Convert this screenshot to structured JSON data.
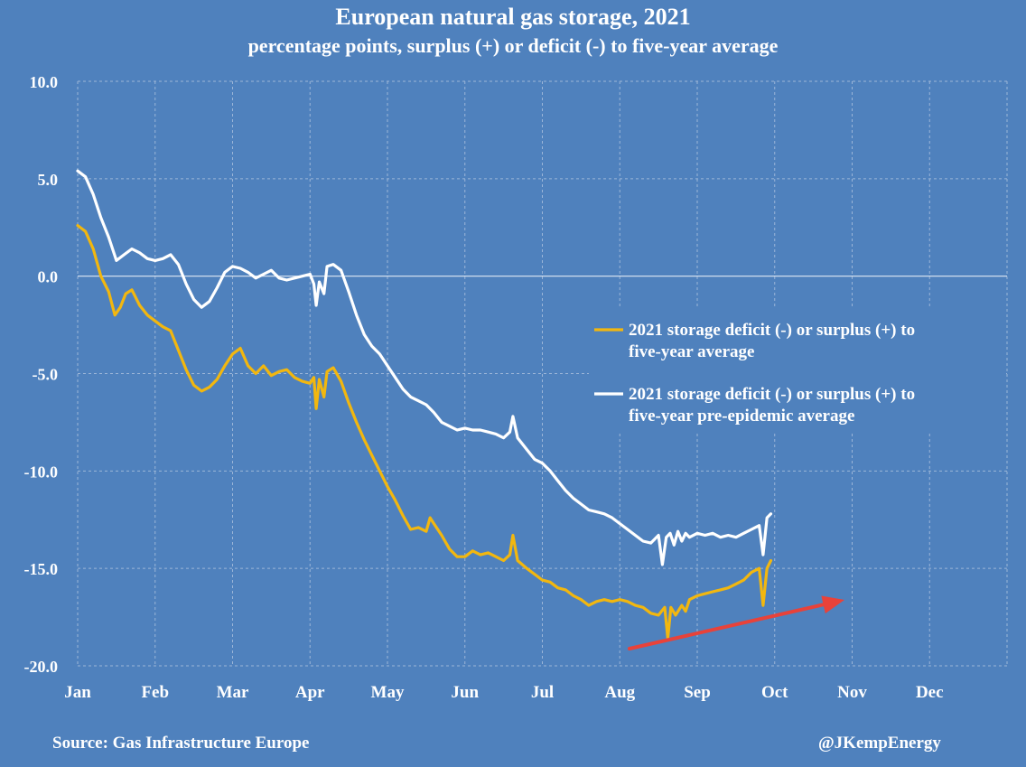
{
  "chart_data": {
    "type": "line",
    "title": "European natural gas storage, 2021",
    "subtitle": "percentage points, surplus (+) or deficit (-) to five-year average",
    "ylim": [
      -20,
      10
    ],
    "yticks": [
      10,
      5,
      0,
      -5,
      -10,
      -15,
      -20
    ],
    "ytick_labels": [
      "10.0",
      "5.0",
      "0.0",
      "-5.0",
      "-10.0",
      "-15.0",
      "-20.0"
    ],
    "months": [
      "Jan",
      "Feb",
      "Mar",
      "Apr",
      "May",
      "Jun",
      "Jul",
      "Aug",
      "Sep",
      "Oct",
      "Nov",
      "Dec"
    ],
    "grid": true,
    "legend_position": "right",
    "series": [
      {
        "name": "2021 storage deficit (-) or surplus (+) to five-year average",
        "color": "#f2b70f",
        "points": [
          [
            0,
            2.6
          ],
          [
            0.1,
            2.3
          ],
          [
            0.2,
            1.4
          ],
          [
            0.3,
            0.0
          ],
          [
            0.4,
            -0.8
          ],
          [
            0.48,
            -2.0
          ],
          [
            0.55,
            -1.6
          ],
          [
            0.62,
            -0.9
          ],
          [
            0.7,
            -0.7
          ],
          [
            0.8,
            -1.5
          ],
          [
            0.9,
            -2.0
          ],
          [
            1.0,
            -2.3
          ],
          [
            1.1,
            -2.6
          ],
          [
            1.2,
            -2.8
          ],
          [
            1.3,
            -3.8
          ],
          [
            1.4,
            -4.8
          ],
          [
            1.5,
            -5.6
          ],
          [
            1.6,
            -5.9
          ],
          [
            1.7,
            -5.7
          ],
          [
            1.8,
            -5.3
          ],
          [
            1.9,
            -4.6
          ],
          [
            2.0,
            -4.0
          ],
          [
            2.1,
            -3.7
          ],
          [
            2.2,
            -4.6
          ],
          [
            2.3,
            -5.0
          ],
          [
            2.4,
            -4.6
          ],
          [
            2.5,
            -5.1
          ],
          [
            2.6,
            -4.9
          ],
          [
            2.7,
            -4.8
          ],
          [
            2.8,
            -5.2
          ],
          [
            2.9,
            -5.4
          ],
          [
            3.0,
            -5.5
          ],
          [
            3.05,
            -5.2
          ],
          [
            3.08,
            -6.8
          ],
          [
            3.12,
            -5.3
          ],
          [
            3.18,
            -6.2
          ],
          [
            3.22,
            -4.9
          ],
          [
            3.3,
            -4.7
          ],
          [
            3.4,
            -5.4
          ],
          [
            3.5,
            -6.5
          ],
          [
            3.6,
            -7.5
          ],
          [
            3.7,
            -8.4
          ],
          [
            3.8,
            -9.2
          ],
          [
            3.9,
            -10.0
          ],
          [
            4.0,
            -10.8
          ],
          [
            4.1,
            -11.5
          ],
          [
            4.2,
            -12.3
          ],
          [
            4.3,
            -13.0
          ],
          [
            4.4,
            -12.9
          ],
          [
            4.5,
            -13.1
          ],
          [
            4.55,
            -12.4
          ],
          [
            4.6,
            -12.7
          ],
          [
            4.7,
            -13.3
          ],
          [
            4.8,
            -14.0
          ],
          [
            4.9,
            -14.4
          ],
          [
            5.0,
            -14.4
          ],
          [
            5.1,
            -14.1
          ],
          [
            5.2,
            -14.3
          ],
          [
            5.3,
            -14.2
          ],
          [
            5.4,
            -14.4
          ],
          [
            5.5,
            -14.6
          ],
          [
            5.58,
            -14.3
          ],
          [
            5.62,
            -13.3
          ],
          [
            5.68,
            -14.6
          ],
          [
            5.8,
            -15.0
          ],
          [
            5.9,
            -15.3
          ],
          [
            6.0,
            -15.6
          ],
          [
            6.1,
            -15.7
          ],
          [
            6.2,
            -16.0
          ],
          [
            6.3,
            -16.1
          ],
          [
            6.4,
            -16.4
          ],
          [
            6.5,
            -16.6
          ],
          [
            6.6,
            -16.9
          ],
          [
            6.7,
            -16.7
          ],
          [
            6.8,
            -16.6
          ],
          [
            6.9,
            -16.7
          ],
          [
            7.0,
            -16.6
          ],
          [
            7.1,
            -16.7
          ],
          [
            7.2,
            -16.9
          ],
          [
            7.3,
            -17.0
          ],
          [
            7.4,
            -17.3
          ],
          [
            7.5,
            -17.4
          ],
          [
            7.58,
            -17.0
          ],
          [
            7.62,
            -18.6
          ],
          [
            7.66,
            -17.0
          ],
          [
            7.72,
            -17.4
          ],
          [
            7.8,
            -16.9
          ],
          [
            7.85,
            -17.2
          ],
          [
            7.9,
            -16.6
          ],
          [
            8.0,
            -16.4
          ],
          [
            8.1,
            -16.3
          ],
          [
            8.2,
            -16.2
          ],
          [
            8.3,
            -16.1
          ],
          [
            8.4,
            -16.0
          ],
          [
            8.5,
            -15.8
          ],
          [
            8.6,
            -15.6
          ],
          [
            8.7,
            -15.2
          ],
          [
            8.8,
            -15.0
          ],
          [
            8.85,
            -16.9
          ],
          [
            8.9,
            -15.0
          ],
          [
            8.95,
            -14.6
          ]
        ]
      },
      {
        "name": "2021 storage deficit (-) or surplus (+) to five-year pre-epidemic average",
        "color": "#ffffff",
        "points": [
          [
            0,
            5.4
          ],
          [
            0.1,
            5.1
          ],
          [
            0.2,
            4.2
          ],
          [
            0.3,
            3.0
          ],
          [
            0.4,
            2.0
          ],
          [
            0.5,
            0.8
          ],
          [
            0.6,
            1.1
          ],
          [
            0.7,
            1.4
          ],
          [
            0.8,
            1.2
          ],
          [
            0.9,
            0.9
          ],
          [
            1.0,
            0.8
          ],
          [
            1.1,
            0.9
          ],
          [
            1.2,
            1.1
          ],
          [
            1.3,
            0.6
          ],
          [
            1.4,
            -0.4
          ],
          [
            1.5,
            -1.2
          ],
          [
            1.6,
            -1.6
          ],
          [
            1.7,
            -1.3
          ],
          [
            1.8,
            -0.6
          ],
          [
            1.9,
            0.2
          ],
          [
            2.0,
            0.5
          ],
          [
            2.1,
            0.4
          ],
          [
            2.2,
            0.2
          ],
          [
            2.3,
            -0.1
          ],
          [
            2.4,
            0.1
          ],
          [
            2.5,
            0.3
          ],
          [
            2.6,
            -0.1
          ],
          [
            2.7,
            -0.2
          ],
          [
            2.8,
            -0.1
          ],
          [
            2.9,
            0.0
          ],
          [
            3.0,
            0.1
          ],
          [
            3.05,
            -0.4
          ],
          [
            3.08,
            -1.5
          ],
          [
            3.12,
            -0.3
          ],
          [
            3.18,
            -0.9
          ],
          [
            3.22,
            0.5
          ],
          [
            3.3,
            0.6
          ],
          [
            3.4,
            0.3
          ],
          [
            3.5,
            -0.8
          ],
          [
            3.6,
            -2.0
          ],
          [
            3.7,
            -3.0
          ],
          [
            3.8,
            -3.6
          ],
          [
            3.9,
            -4.0
          ],
          [
            4.0,
            -4.6
          ],
          [
            4.1,
            -5.2
          ],
          [
            4.2,
            -5.8
          ],
          [
            4.3,
            -6.2
          ],
          [
            4.4,
            -6.4
          ],
          [
            4.5,
            -6.6
          ],
          [
            4.6,
            -7.0
          ],
          [
            4.7,
            -7.5
          ],
          [
            4.8,
            -7.7
          ],
          [
            4.9,
            -7.9
          ],
          [
            5.0,
            -7.8
          ],
          [
            5.1,
            -7.9
          ],
          [
            5.2,
            -7.9
          ],
          [
            5.3,
            -8.0
          ],
          [
            5.4,
            -8.1
          ],
          [
            5.5,
            -8.3
          ],
          [
            5.58,
            -8.0
          ],
          [
            5.62,
            -7.2
          ],
          [
            5.68,
            -8.3
          ],
          [
            5.8,
            -8.9
          ],
          [
            5.9,
            -9.4
          ],
          [
            6.0,
            -9.6
          ],
          [
            6.1,
            -10.0
          ],
          [
            6.2,
            -10.5
          ],
          [
            6.3,
            -11.0
          ],
          [
            6.4,
            -11.4
          ],
          [
            6.5,
            -11.7
          ],
          [
            6.6,
            -12.0
          ],
          [
            6.7,
            -12.1
          ],
          [
            6.8,
            -12.2
          ],
          [
            6.9,
            -12.4
          ],
          [
            7.0,
            -12.7
          ],
          [
            7.1,
            -13.0
          ],
          [
            7.2,
            -13.3
          ],
          [
            7.3,
            -13.6
          ],
          [
            7.4,
            -13.7
          ],
          [
            7.5,
            -13.3
          ],
          [
            7.55,
            -14.8
          ],
          [
            7.6,
            -13.4
          ],
          [
            7.65,
            -13.2
          ],
          [
            7.7,
            -13.8
          ],
          [
            7.75,
            -13.1
          ],
          [
            7.8,
            -13.6
          ],
          [
            7.85,
            -13.2
          ],
          [
            7.9,
            -13.4
          ],
          [
            8.0,
            -13.2
          ],
          [
            8.1,
            -13.3
          ],
          [
            8.2,
            -13.2
          ],
          [
            8.3,
            -13.4
          ],
          [
            8.4,
            -13.3
          ],
          [
            8.5,
            -13.4
          ],
          [
            8.6,
            -13.2
          ],
          [
            8.7,
            -13.0
          ],
          [
            8.8,
            -12.8
          ],
          [
            8.85,
            -14.3
          ],
          [
            8.9,
            -12.4
          ],
          [
            8.95,
            -12.2
          ]
        ]
      }
    ]
  },
  "footer": {
    "source": "Source: Gas Infrastructure Europe",
    "credit": "@JKempEnergy"
  },
  "colors": {
    "background": "#4f81bd",
    "arrow": "#e8423a",
    "grid": "#9cb6d8"
  }
}
